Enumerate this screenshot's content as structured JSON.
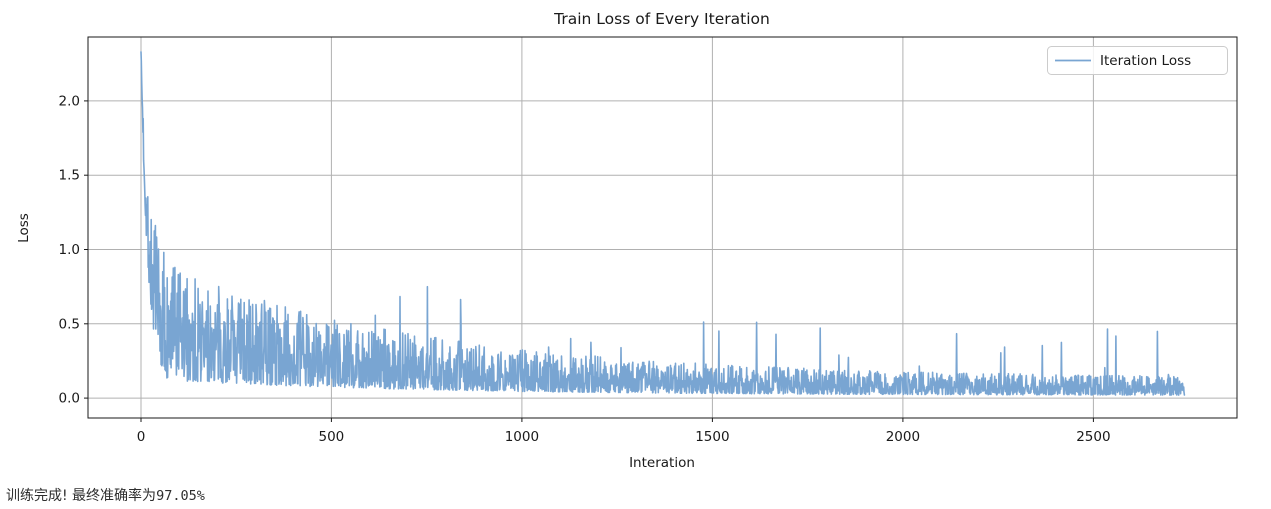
{
  "status_line": {
    "prefix": "训练完成! 最终准确率为",
    "accuracy": "97.05%"
  },
  "chart_data": {
    "type": "line",
    "title": "Train Loss of Every Iteration",
    "xlabel": "Interation",
    "ylabel": "Loss",
    "grid": true,
    "legend": {
      "position": "upper right",
      "entries": [
        "Iteration Loss"
      ]
    },
    "x_ticks": [
      0,
      500,
      1000,
      1500,
      2000,
      2500
    ],
    "y_ticks": [
      0.0,
      0.5,
      1.0,
      1.5,
      2.0
    ],
    "xlim": [
      -139,
      2877
    ],
    "ylim": [
      -0.134,
      2.43
    ],
    "colors": {
      "line": "#79a5d2",
      "grid": "#b0b0b0",
      "text": "#1a1a1a",
      "legend_border": "#cccccc"
    },
    "series": [
      {
        "name": "Iteration Loss",
        "color": "#79a5d2",
        "n_iterations": 2740,
        "initial_loss": 2.33,
        "trend": {
          "c0": 0.06,
          "a1": 1.89,
          "t1": 18,
          "a2": 0.38,
          "t2": 700
        },
        "noise": {
          "seed": 7,
          "base": 0.3,
          "amp": 1.9,
          "pow": 1.7,
          "ramp": 60,
          "spike_prob": 0.012,
          "spike_min": 0.08,
          "spike_amp": 0.32,
          "clamp_min": 0.012,
          "clamp_max": 2.35
        },
        "key_points": [
          {
            "x": 0,
            "y": 2.33
          },
          {
            "x": 30,
            "y": 1.0
          },
          {
            "x": 60,
            "y": 0.55
          },
          {
            "x": 100,
            "y": 0.4
          },
          {
            "x": 250,
            "y": 0.3
          },
          {
            "x": 500,
            "y": 0.25
          },
          {
            "x": 1000,
            "y": 0.16
          },
          {
            "x": 1500,
            "y": 0.13
          },
          {
            "x": 2000,
            "y": 0.09
          },
          {
            "x": 2400,
            "y": 0.08
          },
          {
            "x": 2740,
            "y": 0.07
          }
        ]
      }
    ]
  }
}
